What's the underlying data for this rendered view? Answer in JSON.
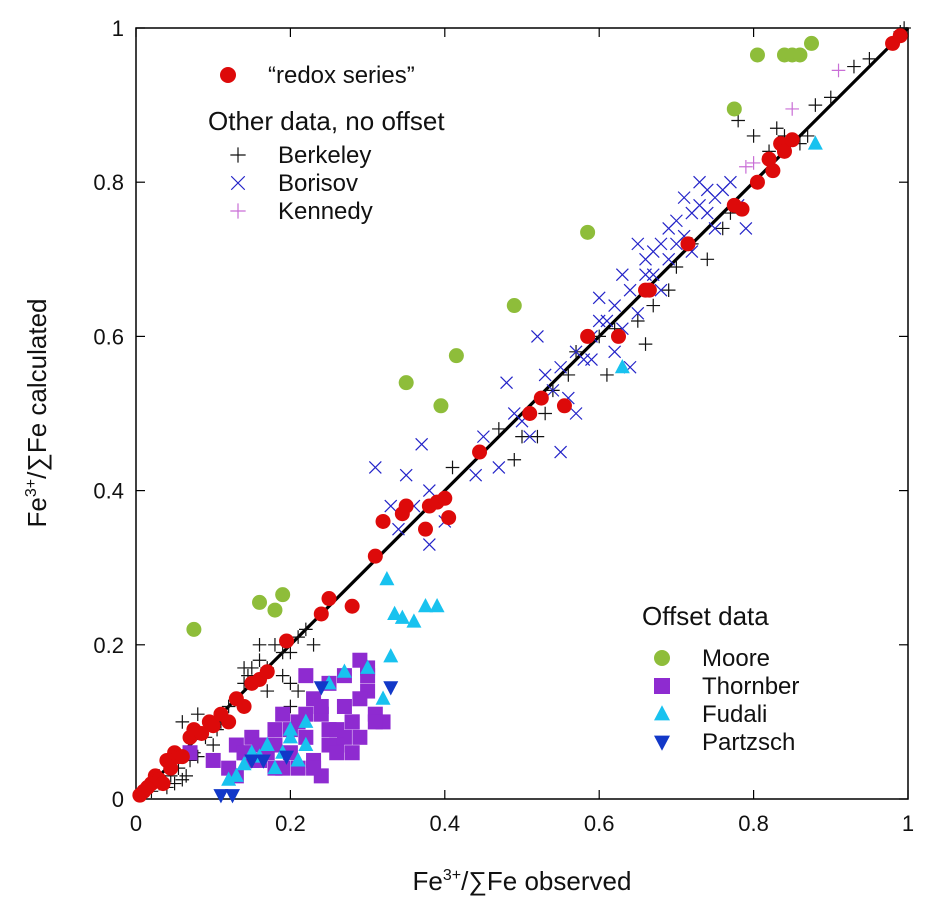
{
  "chart_data": {
    "type": "scatter",
    "title": "",
    "xlabel": {
      "base": "Fe",
      "sup": "3+",
      "rest": "/∑Fe observed"
    },
    "ylabel": {
      "base": "Fe",
      "sup": "3+",
      "rest": "/∑Fe calculated"
    },
    "xlim": [
      0,
      1
    ],
    "ylim": [
      0,
      1
    ],
    "x_ticks": [
      "0",
      "0.2",
      "0.4",
      "0.6",
      "0.8",
      "1"
    ],
    "y_ticks": [
      "0",
      "0.2",
      "0.4",
      "0.6",
      "0.8",
      "1"
    ],
    "x_tick_values": [
      0,
      0.2,
      0.4,
      0.6,
      0.8,
      1
    ],
    "y_tick_values": [
      0,
      0.2,
      0.4,
      0.6,
      0.8,
      1
    ],
    "grid": false,
    "reference_line": {
      "description": "1:1 line",
      "x": [
        0,
        1
      ],
      "y": [
        0,
        1
      ],
      "color": "#000000"
    },
    "legend_groups": [
      {
        "heading": "",
        "placement": "top-left",
        "series": [
          "redox"
        ]
      },
      {
        "heading": "Other data, no offset",
        "placement": "top-left",
        "series": [
          "berkeley",
          "borisov",
          "kennedy"
        ]
      },
      {
        "heading": "Offset data",
        "placement": "bottom-right",
        "series": [
          "moore",
          "thornber",
          "fudali",
          "partzsch"
        ]
      }
    ],
    "series": [
      {
        "id": "redox",
        "name": "“redox series”",
        "marker": "circle",
        "color": "#dd0a0a",
        "x": [
          0.005,
          0.01,
          0.015,
          0.02,
          0.025,
          0.03,
          0.035,
          0.04,
          0.045,
          0.05,
          0.055,
          0.06,
          0.07,
          0.075,
          0.085,
          0.095,
          0.1,
          0.11,
          0.12,
          0.13,
          0.14,
          0.15,
          0.16,
          0.17,
          0.195,
          0.24,
          0.25,
          0.28,
          0.31,
          0.32,
          0.345,
          0.35,
          0.375,
          0.38,
          0.39,
          0.4,
          0.405,
          0.445,
          0.51,
          0.525,
          0.555,
          0.585,
          0.625,
          0.66,
          0.665,
          0.715,
          0.775,
          0.785,
          0.805,
          0.82,
          0.825,
          0.835,
          0.84,
          0.85,
          0.98,
          0.99
        ],
        "y": [
          0.005,
          0.01,
          0.015,
          0.02,
          0.03,
          0.025,
          0.02,
          0.05,
          0.04,
          0.06,
          0.055,
          0.055,
          0.08,
          0.09,
          0.085,
          0.1,
          0.095,
          0.11,
          0.1,
          0.13,
          0.12,
          0.15,
          0.155,
          0.165,
          0.205,
          0.24,
          0.26,
          0.25,
          0.315,
          0.36,
          0.37,
          0.38,
          0.35,
          0.38,
          0.385,
          0.39,
          0.365,
          0.45,
          0.5,
          0.52,
          0.51,
          0.6,
          0.6,
          0.66,
          0.66,
          0.72,
          0.77,
          0.765,
          0.8,
          0.83,
          0.815,
          0.85,
          0.84,
          0.855,
          0.98,
          0.99
        ]
      },
      {
        "id": "berkeley",
        "name": "Berkeley",
        "marker": "plus",
        "color": "#111111",
        "x": [
          0.02,
          0.03,
          0.04,
          0.045,
          0.05,
          0.055,
          0.06,
          0.065,
          0.07,
          0.075,
          0.08,
          0.09,
          0.1,
          0.105,
          0.11,
          0.12,
          0.13,
          0.14,
          0.145,
          0.15,
          0.16,
          0.17,
          0.18,
          0.19,
          0.2,
          0.21,
          0.22,
          0.23,
          0.19,
          0.2,
          0.21,
          0.03,
          0.05,
          0.06,
          0.08,
          0.14,
          0.16,
          0.17,
          0.2,
          0.41,
          0.47,
          0.49,
          0.5,
          0.52,
          0.53,
          0.54,
          0.56,
          0.57,
          0.6,
          0.61,
          0.62,
          0.65,
          0.66,
          0.67,
          0.69,
          0.7,
          0.72,
          0.74,
          0.76,
          0.77,
          0.78,
          0.8,
          0.82,
          0.83,
          0.84,
          0.86,
          0.87,
          0.88,
          0.9,
          0.93,
          0.95,
          0.99,
          0.995
        ],
        "y": [
          0.01,
          0.02,
          0.015,
          0.03,
          0.02,
          0.04,
          0.025,
          0.03,
          0.05,
          0.06,
          0.055,
          0.08,
          0.07,
          0.09,
          0.1,
          0.12,
          0.13,
          0.15,
          0.16,
          0.17,
          0.18,
          0.17,
          0.2,
          0.19,
          0.19,
          0.21,
          0.22,
          0.2,
          0.16,
          0.15,
          0.14,
          0.03,
          0.05,
          0.1,
          0.11,
          0.17,
          0.2,
          0.14,
          0.12,
          0.43,
          0.48,
          0.44,
          0.47,
          0.47,
          0.5,
          0.53,
          0.55,
          0.58,
          0.6,
          0.55,
          0.61,
          0.62,
          0.59,
          0.64,
          0.66,
          0.69,
          0.72,
          0.7,
          0.74,
          0.76,
          0.88,
          0.86,
          0.84,
          0.87,
          0.86,
          0.85,
          0.86,
          0.9,
          0.91,
          0.95,
          0.96,
          0.995,
          1.0
        ]
      },
      {
        "id": "borisov",
        "name": "Borisov",
        "marker": "x",
        "color": "#2323c8",
        "x": [
          0.31,
          0.33,
          0.34,
          0.35,
          0.37,
          0.38,
          0.4,
          0.44,
          0.45,
          0.47,
          0.48,
          0.49,
          0.5,
          0.51,
          0.52,
          0.53,
          0.54,
          0.55,
          0.56,
          0.57,
          0.58,
          0.59,
          0.6,
          0.61,
          0.62,
          0.63,
          0.64,
          0.65,
          0.66,
          0.67,
          0.68,
          0.69,
          0.7,
          0.71,
          0.72,
          0.73,
          0.74,
          0.75,
          0.76,
          0.77,
          0.78,
          0.79,
          0.6,
          0.62,
          0.64,
          0.66,
          0.68,
          0.7,
          0.72,
          0.74,
          0.65,
          0.67,
          0.69,
          0.71,
          0.73,
          0.75,
          0.38,
          0.36,
          0.55,
          0.57,
          0.59,
          0.63
        ],
        "y": [
          0.43,
          0.38,
          0.35,
          0.42,
          0.46,
          0.33,
          0.36,
          0.42,
          0.47,
          0.43,
          0.54,
          0.5,
          0.49,
          0.47,
          0.6,
          0.55,
          0.53,
          0.56,
          0.52,
          0.58,
          0.57,
          0.6,
          0.65,
          0.62,
          0.64,
          0.68,
          0.66,
          0.63,
          0.7,
          0.68,
          0.72,
          0.74,
          0.75,
          0.73,
          0.71,
          0.77,
          0.76,
          0.78,
          0.79,
          0.8,
          0.77,
          0.74,
          0.62,
          0.58,
          0.56,
          0.68,
          0.66,
          0.72,
          0.76,
          0.79,
          0.72,
          0.71,
          0.7,
          0.78,
          0.8,
          0.74,
          0.4,
          0.38,
          0.45,
          0.5,
          0.57,
          0.61
        ]
      },
      {
        "id": "kennedy",
        "name": "Kennedy",
        "marker": "plus",
        "color": "#c96ed6",
        "x": [
          0.79,
          0.8,
          0.85,
          0.91
        ],
        "y": [
          0.82,
          0.825,
          0.895,
          0.945
        ]
      },
      {
        "id": "moore",
        "name": "Moore",
        "marker": "circle",
        "color": "#8ebd3a",
        "x": [
          0.075,
          0.16,
          0.18,
          0.19,
          0.35,
          0.395,
          0.415,
          0.49,
          0.585,
          0.775,
          0.805,
          0.84,
          0.85,
          0.86,
          0.875
        ],
        "y": [
          0.22,
          0.255,
          0.245,
          0.265,
          0.54,
          0.51,
          0.575,
          0.64,
          0.735,
          0.895,
          0.965,
          0.965,
          0.965,
          0.965,
          0.98
        ]
      },
      {
        "id": "thornber",
        "name": "Thornber",
        "marker": "square",
        "color": "#8e2bd0",
        "x": [
          0.07,
          0.1,
          0.12,
          0.13,
          0.14,
          0.15,
          0.16,
          0.17,
          0.18,
          0.19,
          0.2,
          0.21,
          0.22,
          0.23,
          0.24,
          0.25,
          0.26,
          0.27,
          0.28,
          0.29,
          0.3,
          0.31,
          0.32,
          0.13,
          0.15,
          0.17,
          0.19,
          0.21,
          0.23,
          0.25,
          0.27,
          0.29,
          0.31,
          0.14,
          0.16,
          0.18,
          0.22,
          0.24,
          0.26,
          0.28,
          0.3,
          0.18,
          0.2,
          0.22,
          0.24,
          0.26,
          0.28,
          0.23,
          0.25,
          0.27,
          0.29,
          0.3
        ],
        "y": [
          0.06,
          0.05,
          0.04,
          0.07,
          0.06,
          0.08,
          0.05,
          0.07,
          0.09,
          0.04,
          0.06,
          0.1,
          0.08,
          0.05,
          0.11,
          0.09,
          0.07,
          0.12,
          0.1,
          0.08,
          0.14,
          0.11,
          0.1,
          0.03,
          0.05,
          0.06,
          0.11,
          0.04,
          0.13,
          0.07,
          0.08,
          0.18,
          0.1,
          0.06,
          0.07,
          0.04,
          0.16,
          0.03,
          0.06,
          0.1,
          0.16,
          0.07,
          0.09,
          0.11,
          0.12,
          0.09,
          0.06,
          0.04,
          0.15,
          0.16,
          0.13,
          0.17
        ]
      },
      {
        "id": "fudali",
        "name": "Fudali",
        "marker": "triangle-up",
        "color": "#18c2ef",
        "x": [
          0.12,
          0.14,
          0.15,
          0.16,
          0.17,
          0.18,
          0.19,
          0.2,
          0.21,
          0.22,
          0.25,
          0.27,
          0.3,
          0.32,
          0.33,
          0.325,
          0.335,
          0.345,
          0.36,
          0.375,
          0.39,
          0.63,
          0.88,
          0.13,
          0.2,
          0.22
        ],
        "y": [
          0.025,
          0.045,
          0.06,
          0.055,
          0.07,
          0.04,
          0.06,
          0.08,
          0.05,
          0.07,
          0.15,
          0.165,
          0.17,
          0.13,
          0.185,
          0.285,
          0.24,
          0.235,
          0.23,
          0.25,
          0.25,
          0.56,
          0.85,
          0.03,
          0.09,
          0.1
        ],
        "note": ""
      },
      {
        "id": "partzsch",
        "name": "Partzsch",
        "marker": "triangle-down",
        "color": "#1238c8",
        "x": [
          0.11,
          0.125,
          0.15,
          0.165,
          0.195,
          0.24,
          0.33
        ],
        "y": [
          0.005,
          0.005,
          0.05,
          0.05,
          0.055,
          0.145,
          0.145
        ]
      }
    ]
  }
}
